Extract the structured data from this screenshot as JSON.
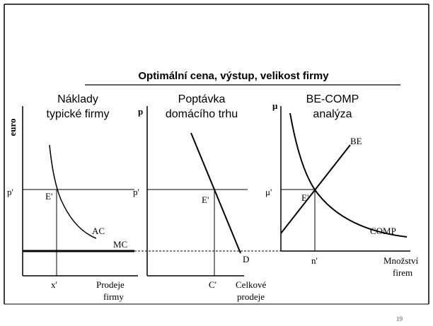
{
  "title": "Optimální cena, výstup, velikost firmy",
  "panels": [
    {
      "heading": [
        "Náklady",
        "typické firmy"
      ],
      "y_axis_label": "euro",
      "price_label": "p'",
      "equilibrium_label": "E'",
      "curves": [
        "AC",
        "MC"
      ],
      "x_tick_label": "x'",
      "x_axis_label": [
        "Prodeje",
        "firmy"
      ]
    },
    {
      "heading": [
        "Poptávka",
        "domácího trhu"
      ],
      "y_axis_label": "p",
      "price_label": "p'",
      "equilibrium_label": "E'",
      "curves": [
        "D"
      ],
      "x_tick_label": "C'",
      "x_axis_label": [
        "Celkové",
        "prodeje"
      ]
    },
    {
      "heading": [
        "BE-COMP",
        "analýza"
      ],
      "y_axis_label": "μ",
      "price_label": "μ'",
      "equilibrium_label": "E'",
      "curves": [
        "BE",
        "COMP"
      ],
      "x_tick_label": "n'",
      "x_axis_label": [
        "Množství",
        "firem"
      ]
    }
  ],
  "page_number": "19"
}
